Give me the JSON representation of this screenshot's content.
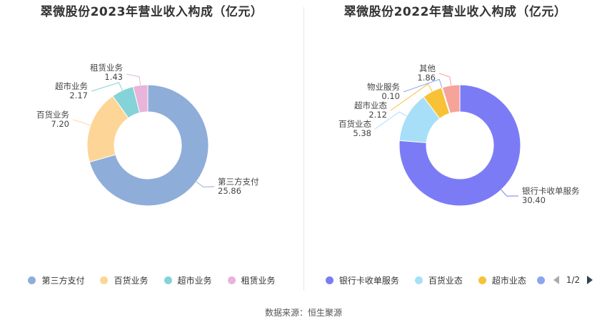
{
  "source_text": "数据来源：恒生聚源",
  "chart_data": [
    {
      "type": "pie",
      "title": "翠微股份2023年营业收入构成（亿元）",
      "slices": [
        {
          "label": "第三方支付",
          "value": 25.86,
          "value_text": "25.86",
          "color": "#8fadd9"
        },
        {
          "label": "百货业务",
          "value": 7.2,
          "value_text": "7.20",
          "color": "#fdd596"
        },
        {
          "label": "超市业务",
          "value": 2.17,
          "value_text": "2.17",
          "color": "#84d3d8"
        },
        {
          "label": "租赁业务",
          "value": 1.43,
          "value_text": "1.43",
          "color": "#e8b4d9"
        }
      ],
      "legend": [
        "第三方支付",
        "百货业务",
        "超市业务",
        "租赁业务"
      ],
      "legend_placement": "bottom"
    },
    {
      "type": "pie",
      "title": "翠微股份2022年营业收入构成（亿元）",
      "slices": [
        {
          "label": "银行卡收单服务",
          "value": 30.4,
          "value_text": "30.40",
          "color": "#7b7cf5"
        },
        {
          "label": "百货业态",
          "value": 5.38,
          "value_text": "5.38",
          "color": "#a7dff8"
        },
        {
          "label": "超市业态",
          "value": 2.12,
          "value_text": "2.12",
          "color": "#f8c237"
        },
        {
          "label": "物业服务",
          "value": 0.1,
          "value_text": "0.10",
          "color": "#8aa6ef"
        },
        {
          "label": "其他",
          "value": 1.86,
          "value_text": "1.86",
          "color": "#f6a39a"
        }
      ],
      "legend": [
        "银行卡收单服务",
        "百货业态",
        "超市业态"
      ],
      "legend_extra_color": "#8aa6ef",
      "legend_placement": "bottom",
      "pager": "1/2"
    }
  ]
}
